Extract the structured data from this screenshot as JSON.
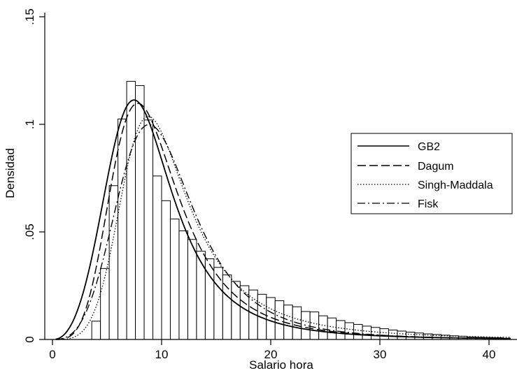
{
  "chart_data": {
    "type": "bar",
    "xlabel": "Salario hora",
    "ylabel": "Densidad",
    "xlim": [
      0,
      42
    ],
    "ylim": [
      0,
      0.15
    ],
    "xticks": [
      0,
      10,
      20,
      30,
      40
    ],
    "xtick_labels": [
      "0",
      "10",
      "20",
      "30",
      "40"
    ],
    "yticks": [
      0,
      0.05,
      0.1,
      0.15
    ],
    "ytick_labels": [
      "0",
      ".05",
      ".1",
      ".15"
    ],
    "grid": false,
    "legend_position": "right",
    "histogram": {
      "bin_width": 0.8,
      "x_start": 3.6,
      "values": [
        0.0085,
        0.033,
        0.0715,
        0.1025,
        0.12,
        0.118,
        0.102,
        0.076,
        0.0645,
        0.056,
        0.0505,
        0.0465,
        0.041,
        0.0375,
        0.0335,
        0.03,
        0.027,
        0.025,
        0.023,
        0.021,
        0.0195,
        0.018,
        0.016,
        0.0152,
        0.013,
        0.0128,
        0.011,
        0.01,
        0.0088,
        0.0078,
        0.007,
        0.0062,
        0.0056,
        0.005,
        0.0044,
        0.0039,
        0.0034,
        0.003,
        0.0026,
        0.0023,
        0.002,
        0.0017,
        0.0015,
        0.0012,
        0.001,
        0.0009,
        0.0008
      ]
    },
    "series": [
      {
        "name": "GB2",
        "style": "solid",
        "dist": "gb2",
        "params": {
          "a": 4.3,
          "b": 8.5,
          "p": 0.78,
          "q": 0.72
        }
      },
      {
        "name": "Dagum",
        "style": "dashed",
        "dist": "gb2",
        "params": {
          "a": 3.4,
          "b": 8.3,
          "p": 1.35,
          "q": 1.0
        }
      },
      {
        "name": "Singh-Maddala",
        "style": "dotted",
        "dist": "gb2",
        "params": {
          "a": 4.8,
          "b": 8.7,
          "p": 1.0,
          "q": 0.55
        }
      },
      {
        "name": "Fisk",
        "style": "dashdot",
        "dist": "gb2",
        "params": {
          "a": 3.8,
          "b": 10.2,
          "p": 1.0,
          "q": 1.0
        }
      }
    ]
  }
}
